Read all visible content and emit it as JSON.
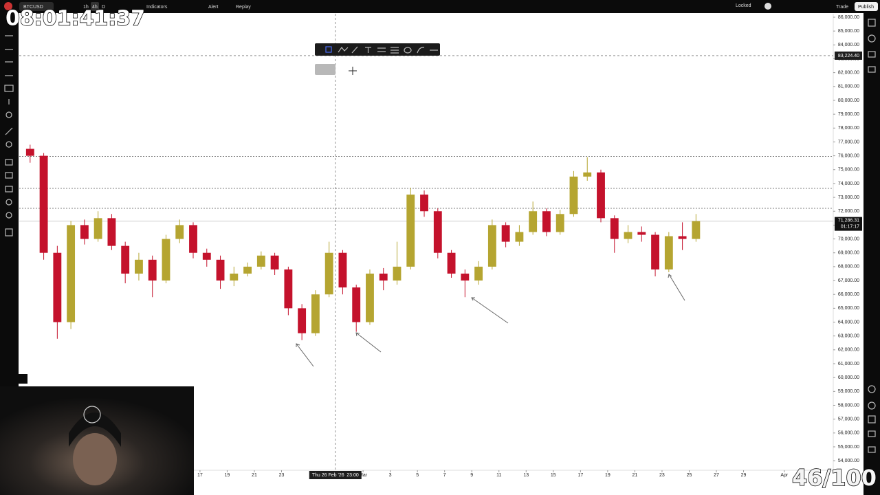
{
  "toolbar": {
    "symbol": "BTCUSD",
    "intervals": [
      "1h",
      "4h",
      "D"
    ],
    "indicators": "Indicators",
    "alert": "Alert",
    "replay": "Replay",
    "locked": "Locked",
    "trade": "Trade",
    "publish": "Publish"
  },
  "overlay": {
    "timer": "08:01:41:37",
    "counter": "46/100"
  },
  "chart_data": {
    "type": "candlestick",
    "up_color": "#b5a531",
    "down_color": "#c4122c",
    "xlim": [
      34.7,
      94.6
    ],
    "ylim": [
      53312,
      86248
    ],
    "xticks": [
      {
        "value": 48,
        "label": "17"
      },
      {
        "value": 50,
        "label": "19"
      },
      {
        "value": 52,
        "label": "21"
      },
      {
        "value": 54,
        "label": "23"
      },
      {
        "value": 60,
        "label": "Mar"
      },
      {
        "value": 62,
        "label": "3"
      },
      {
        "value": 64,
        "label": "5"
      },
      {
        "value": 66,
        "label": "7"
      },
      {
        "value": 68,
        "label": "9"
      },
      {
        "value": 70,
        "label": "11"
      },
      {
        "value": 72,
        "label": "13"
      },
      {
        "value": 74,
        "label": "15"
      },
      {
        "value": 76,
        "label": "17"
      },
      {
        "value": 78,
        "label": "19"
      },
      {
        "value": 80,
        "label": "21"
      },
      {
        "value": 82,
        "label": "23"
      },
      {
        "value": 84,
        "label": "25"
      },
      {
        "value": 86,
        "label": "27"
      },
      {
        "value": 88,
        "label": "29"
      },
      {
        "value": 91,
        "label": "Apr"
      }
    ],
    "yticks": [
      {
        "value": 86000,
        "label": "86,000.00"
      },
      {
        "value": 85000,
        "label": "85,000.00"
      },
      {
        "value": 84000,
        "label": "84,000.00"
      },
      {
        "value": 83000,
        "label": "83,000.00"
      },
      {
        "value": 82000,
        "label": "82,000.00"
      },
      {
        "value": 81000,
        "label": "81,000.00"
      },
      {
        "value": 80000,
        "label": "80,000.00"
      },
      {
        "value": 79000,
        "label": "79,000.00"
      },
      {
        "value": 78000,
        "label": "78,000.00"
      },
      {
        "value": 77000,
        "label": "77,000.00"
      },
      {
        "value": 76000,
        "label": "76,000.00"
      },
      {
        "value": 75000,
        "label": "75,000.00"
      },
      {
        "value": 74000,
        "label": "74,000.00"
      },
      {
        "value": 73000,
        "label": "73,000.00"
      },
      {
        "value": 72000,
        "label": "72,000.00"
      },
      {
        "value": 71000,
        "label": "71,000.00"
      },
      {
        "value": 70000,
        "label": "70,000.00"
      },
      {
        "value": 69000,
        "label": "69,000.00"
      },
      {
        "value": 68000,
        "label": "68,000.00"
      },
      {
        "value": 67000,
        "label": "67,000.00"
      },
      {
        "value": 66000,
        "label": "66,000.00"
      },
      {
        "value": 65000,
        "label": "65,000.00"
      },
      {
        "value": 64000,
        "label": "64,000.00"
      },
      {
        "value": 63000,
        "label": "63,000.00"
      },
      {
        "value": 62000,
        "label": "62,000.00"
      },
      {
        "value": 61000,
        "label": "61,000.00"
      },
      {
        "value": 60000,
        "label": "60,000.00"
      },
      {
        "value": 59000,
        "label": "59,000.00"
      },
      {
        "value": 58000,
        "label": "58,000.00"
      },
      {
        "value": 57000,
        "label": "57,000.00"
      },
      {
        "value": 56000,
        "label": "56,000.00"
      },
      {
        "value": 55000,
        "label": "55,000.00"
      },
      {
        "value": 54000,
        "label": "54,000.00"
      }
    ],
    "x": [
      35.5,
      36.5,
      37.5,
      38.5,
      39.5,
      40.5,
      41.5,
      42.5,
      43.5,
      44.5,
      45.5,
      46.5,
      47.5,
      48.5,
      49.5,
      50.5,
      51.5,
      52.5,
      53.5,
      54.5,
      55.5,
      56.5,
      57.5,
      58.5,
      59.5,
      60.5,
      61.5,
      62.5,
      63.5,
      64.5,
      65.5,
      66.5,
      67.5,
      68.5,
      69.5,
      70.5,
      71.5,
      72.5,
      73.5,
      74.5,
      75.5,
      76.5,
      77.5,
      78.5,
      79.5,
      80.5,
      81.5,
      82.5,
      83.5,
      84.5
    ],
    "open": [
      76500,
      76000,
      69000,
      64000,
      71000,
      70000,
      71500,
      69500,
      67500,
      68500,
      67000,
      70000,
      71000,
      69000,
      68500,
      67000,
      67500,
      68000,
      68800,
      67800,
      65000,
      63200,
      66000,
      69000,
      66500,
      64000,
      67500,
      67000,
      68000,
      73200,
      72000,
      69000,
      67500,
      67000,
      68000,
      71000,
      69800,
      70500,
      72000,
      70500,
      71800,
      74500,
      74800,
      71500,
      70000,
      70500,
      70300,
      67800,
      70200,
      70000
    ],
    "high": [
      76800,
      76200,
      69500,
      71300,
      71400,
      72000,
      71800,
      69800,
      69000,
      68800,
      70300,
      71400,
      71200,
      69300,
      68800,
      68000,
      68300,
      69100,
      69000,
      68000,
      65300,
      66300,
      69800,
      69200,
      66700,
      67800,
      67900,
      69800,
      73700,
      73500,
      72200,
      69200,
      67800,
      68400,
      71400,
      71200,
      71000,
      72700,
      72200,
      72100,
      74900,
      75900,
      75000,
      71700,
      71000,
      70900,
      70500,
      70500,
      71200,
      71800
    ],
    "low": [
      75500,
      68500,
      62800,
      63500,
      69600,
      69800,
      69200,
      66800,
      67000,
      65800,
      66800,
      69700,
      68600,
      68000,
      66400,
      66600,
      67300,
      67800,
      67400,
      64500,
      62700,
      63000,
      65800,
      66000,
      63300,
      63800,
      66300,
      66700,
      67800,
      71600,
      68600,
      67200,
      65800,
      66700,
      67800,
      69400,
      69500,
      70300,
      70200,
      70300,
      71600,
      74200,
      71200,
      69000,
      69700,
      69800,
      67300,
      67600,
      69200,
      69800
    ],
    "close": [
      76000,
      69000,
      64000,
      71000,
      70000,
      71500,
      69500,
      67500,
      68500,
      67000,
      70000,
      71000,
      69000,
      68500,
      67000,
      67500,
      68000,
      68800,
      67800,
      65000,
      63200,
      66000,
      69000,
      66500,
      64000,
      67500,
      67000,
      68000,
      73200,
      72000,
      69000,
      67500,
      67000,
      68000,
      71000,
      69800,
      70500,
      72000,
      70500,
      71800,
      74500,
      74800,
      71500,
      70000,
      70500,
      70300,
      67800,
      70200,
      70000,
      71286.31
    ],
    "hlines": [
      75950,
      73650,
      72210
    ],
    "last_price": {
      "value": 71286.31,
      "label": "71,286.31"
    },
    "countdown": "01:17:17",
    "crosshair": {
      "x": 57.96,
      "date": "Thu 26 Feb '26",
      "time": "23:00",
      "price": {
        "value": 83224.4,
        "label": "83,224.40"
      }
    }
  }
}
